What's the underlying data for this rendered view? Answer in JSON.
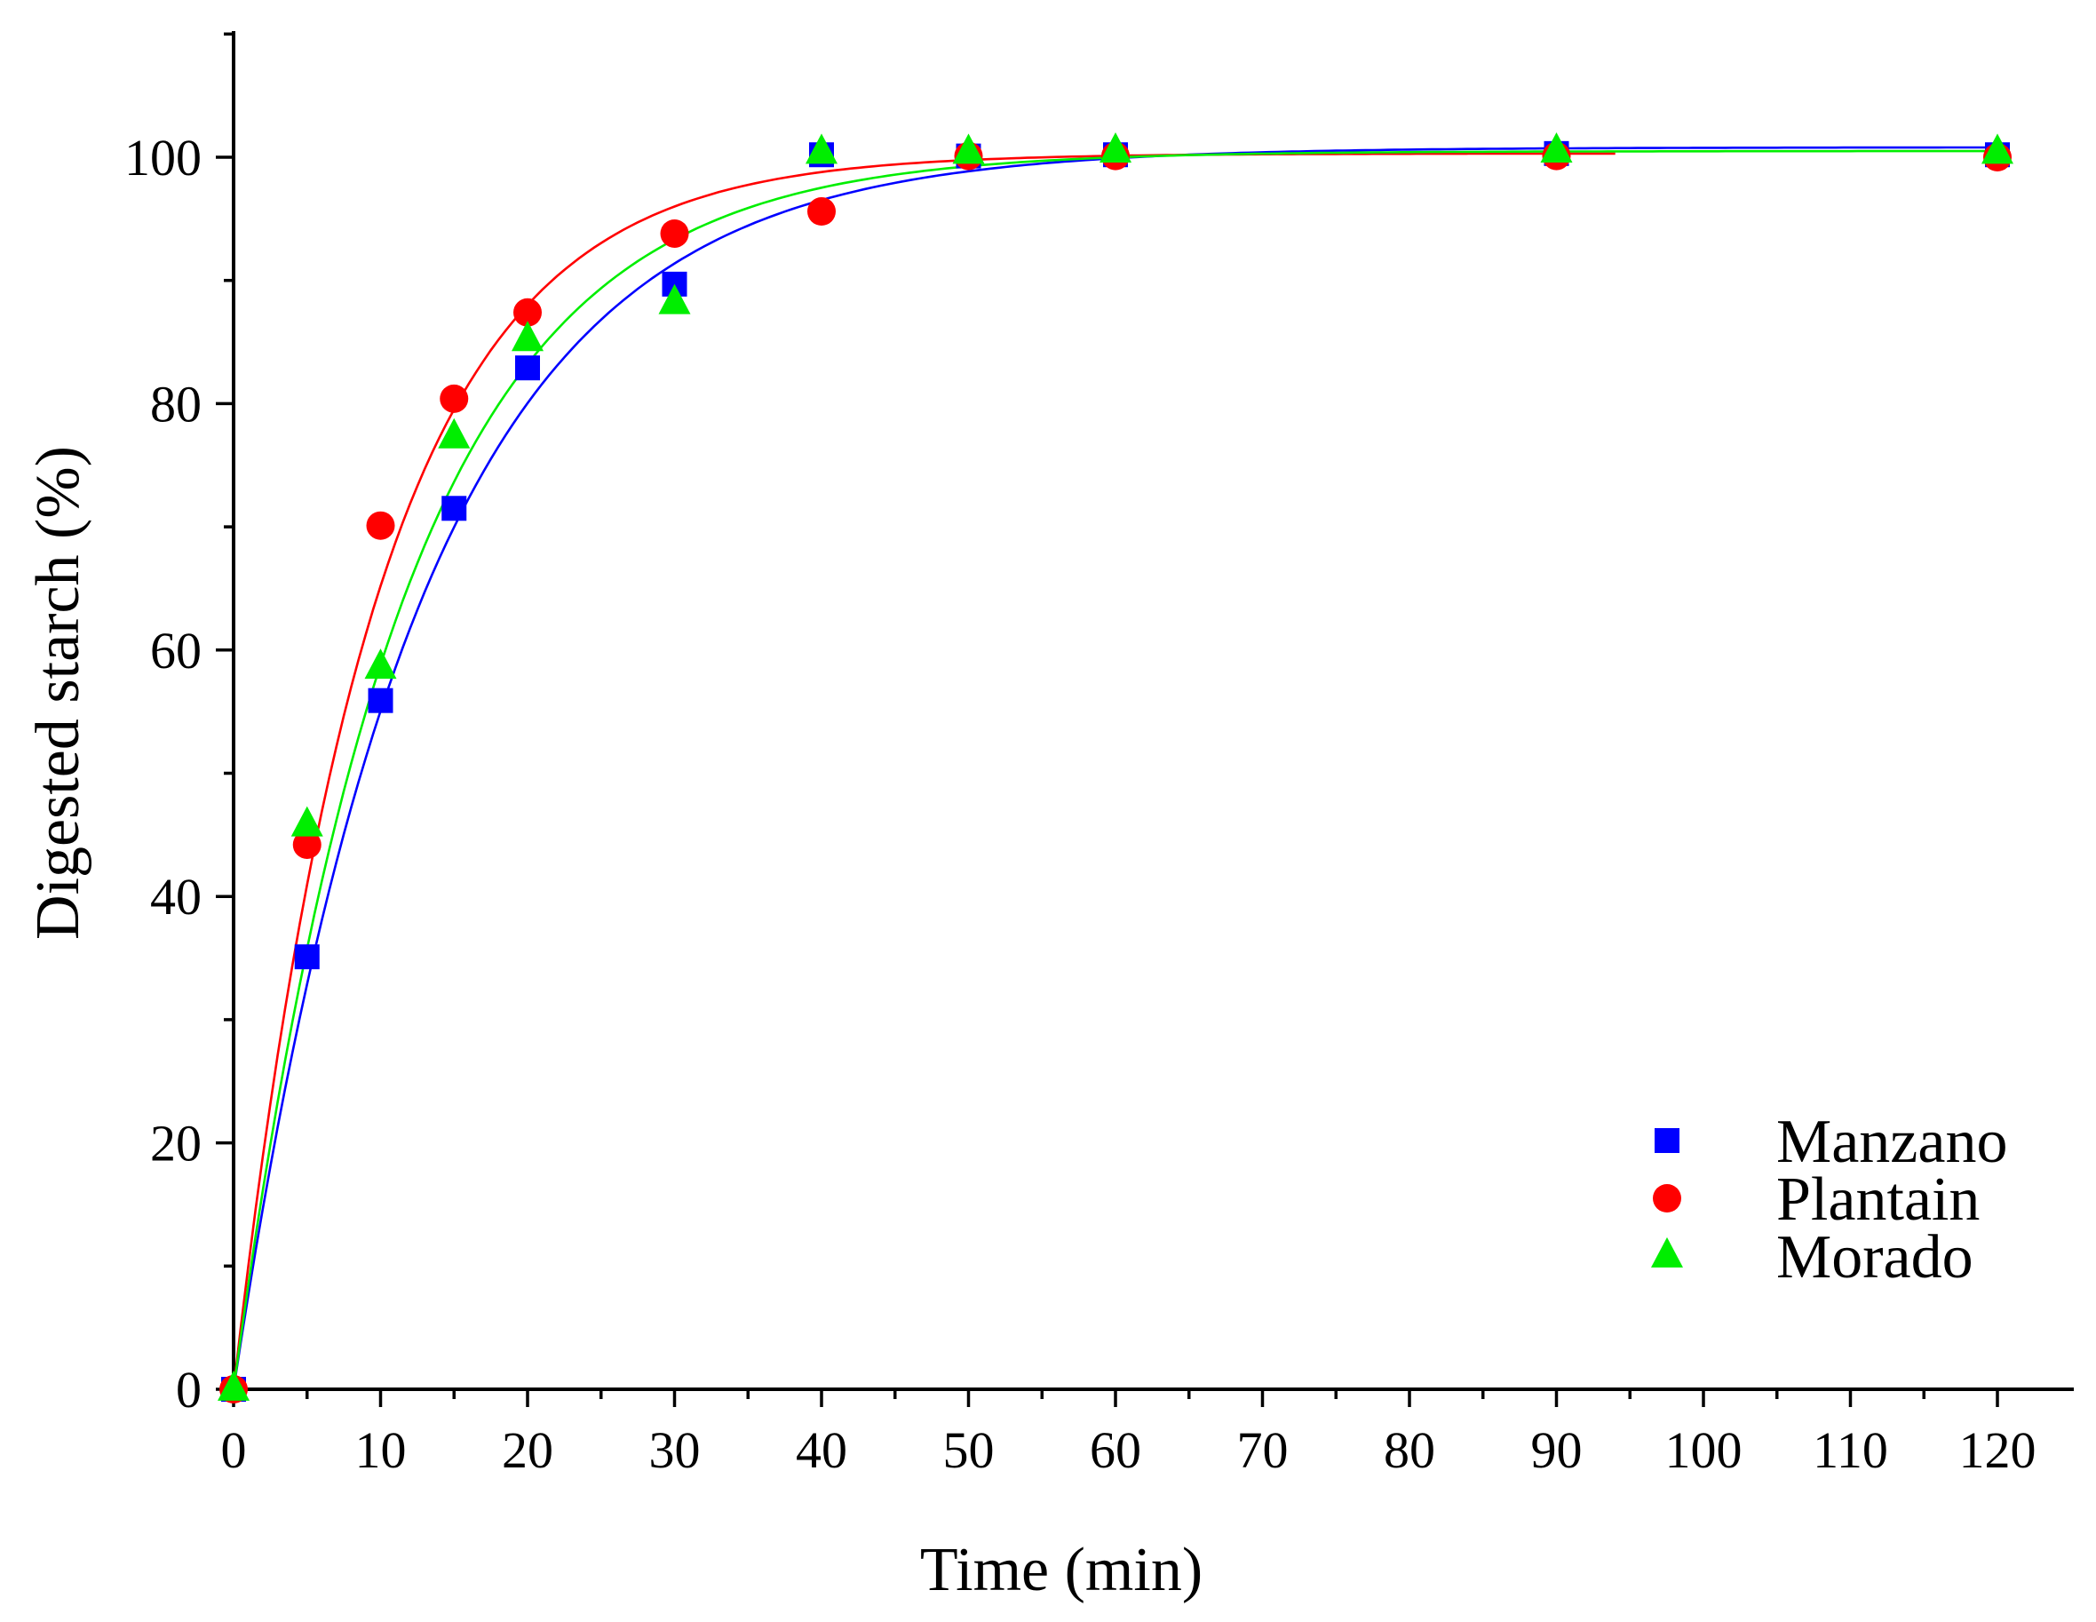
{
  "chart_data": {
    "type": "scatter",
    "title": "",
    "xlabel": "Time (min)",
    "ylabel": "Digested starch (%)",
    "xlim": [
      0,
      125
    ],
    "ylim": [
      0,
      110
    ],
    "xticks": [
      0,
      10,
      20,
      30,
      40,
      50,
      60,
      70,
      80,
      90,
      100,
      110,
      120
    ],
    "yticks": [
      0,
      20,
      40,
      60,
      80,
      100
    ],
    "grid": false,
    "legend_position": "bottom-right",
    "series": [
      {
        "name": "Manzano",
        "marker": "square",
        "color": "#0000ff",
        "x": [
          0,
          5,
          10,
          15,
          20,
          30,
          40,
          50,
          60,
          90,
          120
        ],
        "y": [
          0,
          35.1,
          55.9,
          71.5,
          82.9,
          89.7,
          100.2,
          100.1,
          100.2,
          100.3,
          100.2
        ],
        "fit": {
          "model": "first-order",
          "c_inf": 100.8,
          "k": 0.079,
          "x_max": 120
        }
      },
      {
        "name": "Plantain",
        "marker": "circle",
        "color": "#ff0000",
        "x": [
          0,
          5,
          10,
          15,
          20,
          30,
          40,
          50,
          60,
          90,
          120
        ],
        "y": [
          0,
          44.2,
          70.1,
          80.4,
          87.4,
          93.8,
          95.6,
          100.1,
          100.1,
          100.1,
          100.0
        ],
        "fit": {
          "model": "first-order",
          "c_inf": 100.3,
          "k": 0.105,
          "x_max": 94
        }
      },
      {
        "name": "Morado",
        "marker": "triangle",
        "color": "#00ee00",
        "x": [
          0,
          5,
          10,
          15,
          20,
          30,
          40,
          50,
          60,
          90,
          120
        ],
        "y": [
          0,
          45.8,
          58.6,
          77.3,
          85.2,
          88.2,
          100.4,
          100.4,
          100.5,
          100.5,
          100.4
        ],
        "fit": {
          "model": "first-order",
          "c_inf": 100.5,
          "k": 0.088,
          "x_max": 120
        }
      }
    ]
  }
}
